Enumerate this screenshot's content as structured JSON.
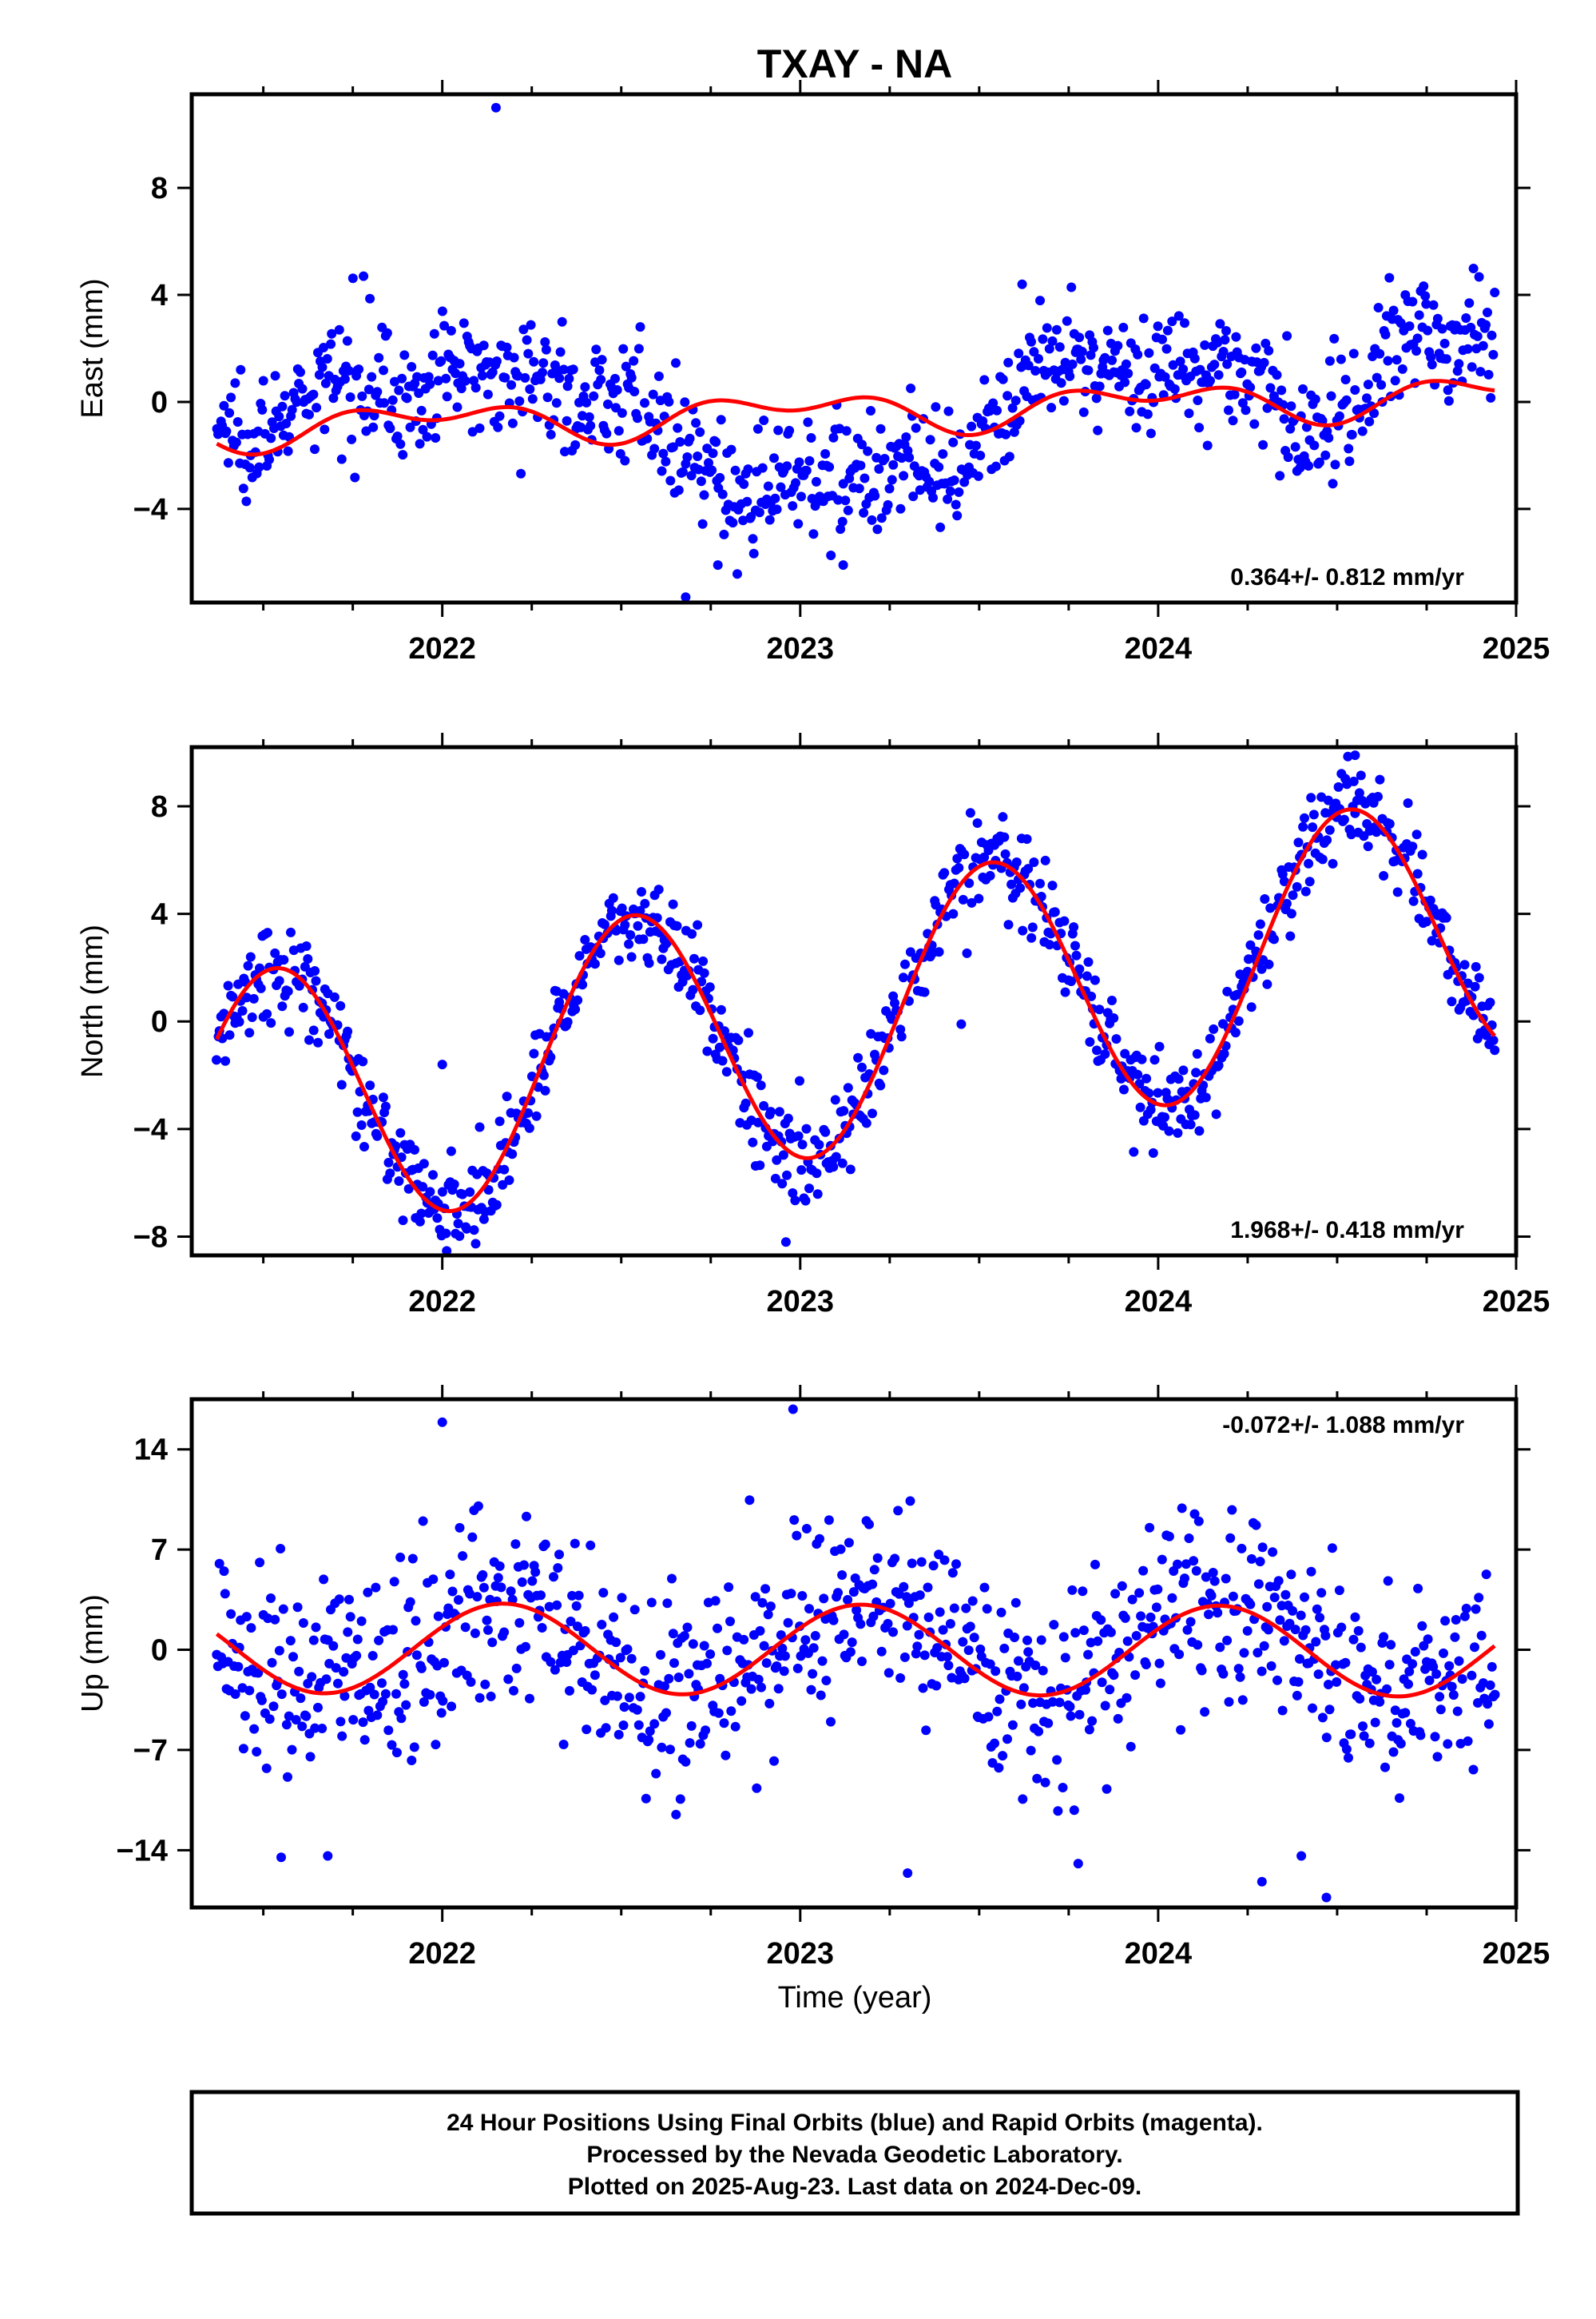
{
  "title": "TXAY - NA",
  "x_axis_label": "Time (year)",
  "footer_lines": [
    "24 Hour Positions Using Final Orbits (blue) and Rapid Orbits (magenta).",
    "Processed by the Nevada Geodetic Laboratory.",
    "Plotted on 2025-Aug-23. Last data on 2024-Dec-09."
  ],
  "colors": {
    "points": "#0000ff",
    "fit": "#ff0000",
    "frame": "#000000"
  },
  "chart_data": [
    {
      "type": "scatter",
      "ylabel": "East (mm)",
      "rate_text": "0.364+/- 0.812 mm/yr",
      "rate_position": "bottom-right",
      "xlim": [
        2021.3,
        2025.0
      ],
      "ylim": [
        -7.5,
        11.5
      ],
      "x_ticks": [
        2022,
        2023,
        2024,
        2025
      ],
      "y_ticks": [
        -4,
        0,
        4,
        8
      ],
      "grid": false,
      "series": [
        {
          "style": "points",
          "color": "blue",
          "data_start": 2021.37,
          "data_end": 2024.94,
          "segments": [
            [
              2021.37,
              -1.0
            ],
            [
              2021.55,
              -0.9
            ],
            [
              2021.7,
              0.8
            ],
            [
              2021.8,
              1.2
            ],
            [
              2021.92,
              -0.3
            ],
            [
              2022.0,
              1.0
            ],
            [
              2022.15,
              1.4
            ],
            [
              2022.3,
              0.6
            ],
            [
              2022.45,
              -0.1
            ],
            [
              2022.55,
              0.6
            ],
            [
              2022.6,
              -1.3
            ],
            [
              2022.75,
              -2.8
            ],
            [
              2022.85,
              -3.6
            ],
            [
              2023.0,
              -2.4
            ],
            [
              2023.15,
              -2.9
            ],
            [
              2023.3,
              -2.1
            ],
            [
              2023.45,
              -3.5
            ],
            [
              2023.55,
              -0.4
            ],
            [
              2023.65,
              1.1
            ],
            [
              2023.8,
              1.4
            ],
            [
              2024.0,
              1.1
            ],
            [
              2024.15,
              1.6
            ],
            [
              2024.3,
              0.5
            ],
            [
              2024.4,
              -1.6
            ],
            [
              2024.5,
              -0.6
            ],
            [
              2024.6,
              1.0
            ],
            [
              2024.7,
              2.6
            ],
            [
              2024.8,
              2.3
            ],
            [
              2024.94,
              2.6
            ]
          ],
          "scatter_mm": 1.1,
          "outliers": [
            [
              2022.15,
              11.0
            ],
            [
              2022.68,
              -7.3
            ],
            [
              2022.77,
              -6.1
            ],
            [
              2023.12,
              -6.1
            ],
            [
              2021.78,
              4.7
            ],
            [
              2023.62,
              4.4
            ]
          ]
        },
        {
          "style": "line",
          "color": "red",
          "name": "",
          "trend": {
            "t0": 2023.17,
            "offset": -0.35,
            "rate": 0.364
          },
          "annual": {
            "amp": 0.55,
            "phase": 0.72
          },
          "semiannual": {
            "amp": 0.45,
            "phase": 0.1
          }
        }
      ]
    },
    {
      "type": "scatter",
      "ylabel": "North (mm)",
      "rate_text": "1.968+/- 0.418 mm/yr",
      "rate_position": "bottom-right",
      "xlim": [
        2021.3,
        2025.0
      ],
      "ylim": [
        -8.7,
        10.2
      ],
      "x_ticks": [
        2022,
        2023,
        2024,
        2025
      ],
      "y_ticks": [
        -8,
        -4,
        0,
        4,
        8
      ],
      "grid": false,
      "series": [
        {
          "style": "points",
          "color": "blue",
          "data_start": 2021.37,
          "data_end": 2024.94,
          "scatter_mm": 0.9,
          "outliers": [
            [
              2022.96,
              -8.2
            ],
            [
              2022.0,
              -1.6
            ],
            [
              2023.45,
              -0.1
            ],
            [
              2024.55,
              9.9
            ]
          ]
        },
        {
          "style": "line",
          "color": "red",
          "name": "",
          "trend": {
            "t0": 2023.17,
            "offset": 0.2,
            "rate": 1.968
          },
          "annual": {
            "amp": 5.0,
            "phase": 0.28
          },
          "semiannual": {
            "amp": 0.0,
            "phase": 0.0
          }
        }
      ]
    },
    {
      "type": "scatter",
      "ylabel": "Up (mm)",
      "rate_text": "-0.072+/- 1.088 mm/yr",
      "rate_position": "top-right",
      "xlim": [
        2021.3,
        2025.0
      ],
      "ylim": [
        -18,
        17.5
      ],
      "x_ticks": [
        2022,
        2023,
        2024,
        2025
      ],
      "y_ticks": [
        -14,
        -7,
        0,
        7,
        14
      ],
      "grid": false,
      "series": [
        {
          "style": "points",
          "color": "blue",
          "data_start": 2021.37,
          "data_end": 2024.94,
          "scatter_mm": 3.6,
          "outliers": [
            [
              2022.0,
              15.9
            ],
            [
              2022.98,
              16.8
            ],
            [
              2021.55,
              -14.5
            ],
            [
              2021.68,
              -14.4
            ],
            [
              2023.3,
              -15.6
            ],
            [
              2024.29,
              -16.2
            ],
            [
              2024.47,
              -17.3
            ],
            [
              2024.4,
              -14.4
            ]
          ]
        },
        {
          "style": "line",
          "color": "red",
          "name": "",
          "trend": {
            "t0": 2023.17,
            "offset": 0.0,
            "rate": -0.072
          },
          "annual": {
            "amp": 3.15,
            "phase": 0.92
          },
          "semiannual": {
            "amp": 0.0,
            "phase": 0.0
          }
        }
      ]
    }
  ]
}
